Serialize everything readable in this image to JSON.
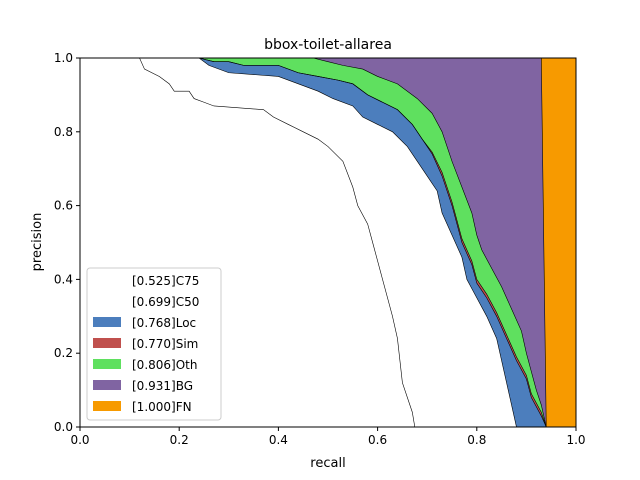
{
  "chart_data": {
    "type": "area",
    "title": "bbox-toilet-allarea",
    "xlabel": "recall",
    "ylabel": "precision",
    "xlim": [
      0.0,
      1.0
    ],
    "ylim": [
      0.0,
      1.0
    ],
    "xticks": [
      "0.0",
      "0.2",
      "0.4",
      "0.6",
      "0.8",
      "1.0"
    ],
    "yticks": [
      "0.0",
      "0.2",
      "0.4",
      "0.6",
      "0.8",
      "1.0"
    ],
    "legend_position": "lower-left",
    "series": [
      {
        "name": "[0.525]C75",
        "color": "#ffffff",
        "points": [
          [
            0,
            1
          ],
          [
            0.12,
            1
          ],
          [
            0.13,
            0.97
          ],
          [
            0.16,
            0.95
          ],
          [
            0.18,
            0.93
          ],
          [
            0.19,
            0.91
          ],
          [
            0.22,
            0.91
          ],
          [
            0.23,
            0.89
          ],
          [
            0.25,
            0.88
          ],
          [
            0.27,
            0.87
          ],
          [
            0.37,
            0.86
          ],
          [
            0.39,
            0.84
          ],
          [
            0.42,
            0.82
          ],
          [
            0.45,
            0.8
          ],
          [
            0.48,
            0.78
          ],
          [
            0.5,
            0.76
          ],
          [
            0.53,
            0.72
          ],
          [
            0.55,
            0.65
          ],
          [
            0.56,
            0.6
          ],
          [
            0.58,
            0.55
          ],
          [
            0.59,
            0.5
          ],
          [
            0.6,
            0.45
          ],
          [
            0.61,
            0.4
          ],
          [
            0.62,
            0.35
          ],
          [
            0.63,
            0.3
          ],
          [
            0.64,
            0.24
          ],
          [
            0.645,
            0.18
          ],
          [
            0.65,
            0.12
          ],
          [
            0.66,
            0.08
          ],
          [
            0.67,
            0.04
          ],
          [
            0.675,
            0.0
          ]
        ]
      },
      {
        "name": "[0.699]C50",
        "color": "#ffffff",
        "points": [
          [
            0,
            1
          ],
          [
            0.24,
            1
          ],
          [
            0.26,
            0.98
          ],
          [
            0.3,
            0.96
          ],
          [
            0.4,
            0.95
          ],
          [
            0.44,
            0.93
          ],
          [
            0.48,
            0.91
          ],
          [
            0.51,
            0.89
          ],
          [
            0.55,
            0.87
          ],
          [
            0.57,
            0.84
          ],
          [
            0.6,
            0.82
          ],
          [
            0.63,
            0.8
          ],
          [
            0.66,
            0.76
          ],
          [
            0.68,
            0.72
          ],
          [
            0.7,
            0.68
          ],
          [
            0.72,
            0.64
          ],
          [
            0.73,
            0.58
          ],
          [
            0.75,
            0.52
          ],
          [
            0.77,
            0.46
          ],
          [
            0.78,
            0.4
          ],
          [
            0.8,
            0.35
          ],
          [
            0.82,
            0.3
          ],
          [
            0.84,
            0.24
          ],
          [
            0.85,
            0.18
          ],
          [
            0.86,
            0.12
          ],
          [
            0.87,
            0.06
          ],
          [
            0.88,
            0.0
          ]
        ]
      },
      {
        "name": "[0.768]Loc",
        "color": "#4c7ebd",
        "points": [
          [
            0,
            1
          ],
          [
            0.24,
            1
          ],
          [
            0.27,
            0.99
          ],
          [
            0.3,
            0.99
          ],
          [
            0.33,
            0.98
          ],
          [
            0.4,
            0.98
          ],
          [
            0.44,
            0.96
          ],
          [
            0.48,
            0.95
          ],
          [
            0.52,
            0.94
          ],
          [
            0.55,
            0.93
          ],
          [
            0.58,
            0.9
          ],
          [
            0.61,
            0.88
          ],
          [
            0.64,
            0.86
          ],
          [
            0.67,
            0.82
          ],
          [
            0.69,
            0.78
          ],
          [
            0.71,
            0.74
          ],
          [
            0.73,
            0.68
          ],
          [
            0.75,
            0.6
          ],
          [
            0.76,
            0.55
          ],
          [
            0.77,
            0.5
          ],
          [
            0.79,
            0.44
          ],
          [
            0.8,
            0.39
          ],
          [
            0.82,
            0.35
          ],
          [
            0.84,
            0.3
          ],
          [
            0.86,
            0.24
          ],
          [
            0.88,
            0.18
          ],
          [
            0.9,
            0.13
          ],
          [
            0.91,
            0.08
          ],
          [
            0.93,
            0.03
          ],
          [
            0.94,
            0.0
          ]
        ]
      },
      {
        "name": "[0.770]Sim",
        "color": "#c0504d",
        "points": [
          [
            0,
            1
          ],
          [
            0.24,
            1
          ],
          [
            0.27,
            0.99
          ],
          [
            0.3,
            0.99
          ],
          [
            0.33,
            0.98
          ],
          [
            0.4,
            0.98
          ],
          [
            0.44,
            0.96
          ],
          [
            0.48,
            0.95
          ],
          [
            0.52,
            0.94
          ],
          [
            0.55,
            0.93
          ],
          [
            0.58,
            0.9
          ],
          [
            0.61,
            0.88
          ],
          [
            0.64,
            0.86
          ],
          [
            0.67,
            0.82
          ],
          [
            0.69,
            0.78
          ],
          [
            0.71,
            0.745
          ],
          [
            0.73,
            0.69
          ],
          [
            0.75,
            0.61
          ],
          [
            0.76,
            0.56
          ],
          [
            0.77,
            0.51
          ],
          [
            0.79,
            0.45
          ],
          [
            0.8,
            0.4
          ],
          [
            0.82,
            0.36
          ],
          [
            0.84,
            0.31
          ],
          [
            0.86,
            0.25
          ],
          [
            0.88,
            0.19
          ],
          [
            0.9,
            0.14
          ],
          [
            0.91,
            0.09
          ],
          [
            0.93,
            0.04
          ],
          [
            0.94,
            0.0
          ]
        ]
      },
      {
        "name": "[0.806]Oth",
        "color": "#5fe05f",
        "points": [
          [
            0,
            1
          ],
          [
            0.3,
            1
          ],
          [
            0.4,
            1
          ],
          [
            0.47,
            1
          ],
          [
            0.5,
            0.99
          ],
          [
            0.53,
            0.98
          ],
          [
            0.57,
            0.97
          ],
          [
            0.6,
            0.95
          ],
          [
            0.64,
            0.93
          ],
          [
            0.68,
            0.89
          ],
          [
            0.71,
            0.85
          ],
          [
            0.73,
            0.8
          ],
          [
            0.75,
            0.72
          ],
          [
            0.77,
            0.65
          ],
          [
            0.79,
            0.58
          ],
          [
            0.8,
            0.52
          ],
          [
            0.81,
            0.48
          ],
          [
            0.83,
            0.43
          ],
          [
            0.85,
            0.38
          ],
          [
            0.87,
            0.32
          ],
          [
            0.89,
            0.26
          ],
          [
            0.9,
            0.2
          ],
          [
            0.91,
            0.15
          ],
          [
            0.92,
            0.1
          ],
          [
            0.93,
            0.06
          ],
          [
            0.94,
            0.0
          ]
        ]
      },
      {
        "name": "[0.931]BG",
        "color": "#8064a2",
        "points": [
          [
            0,
            1
          ],
          [
            0.93,
            1
          ],
          [
            0.94,
            0.0
          ]
        ]
      },
      {
        "name": "[1.000]FN",
        "color": "#f79a00",
        "points": [
          [
            0,
            1
          ],
          [
            1.0,
            1
          ],
          [
            1.0,
            0.0
          ]
        ]
      }
    ]
  }
}
